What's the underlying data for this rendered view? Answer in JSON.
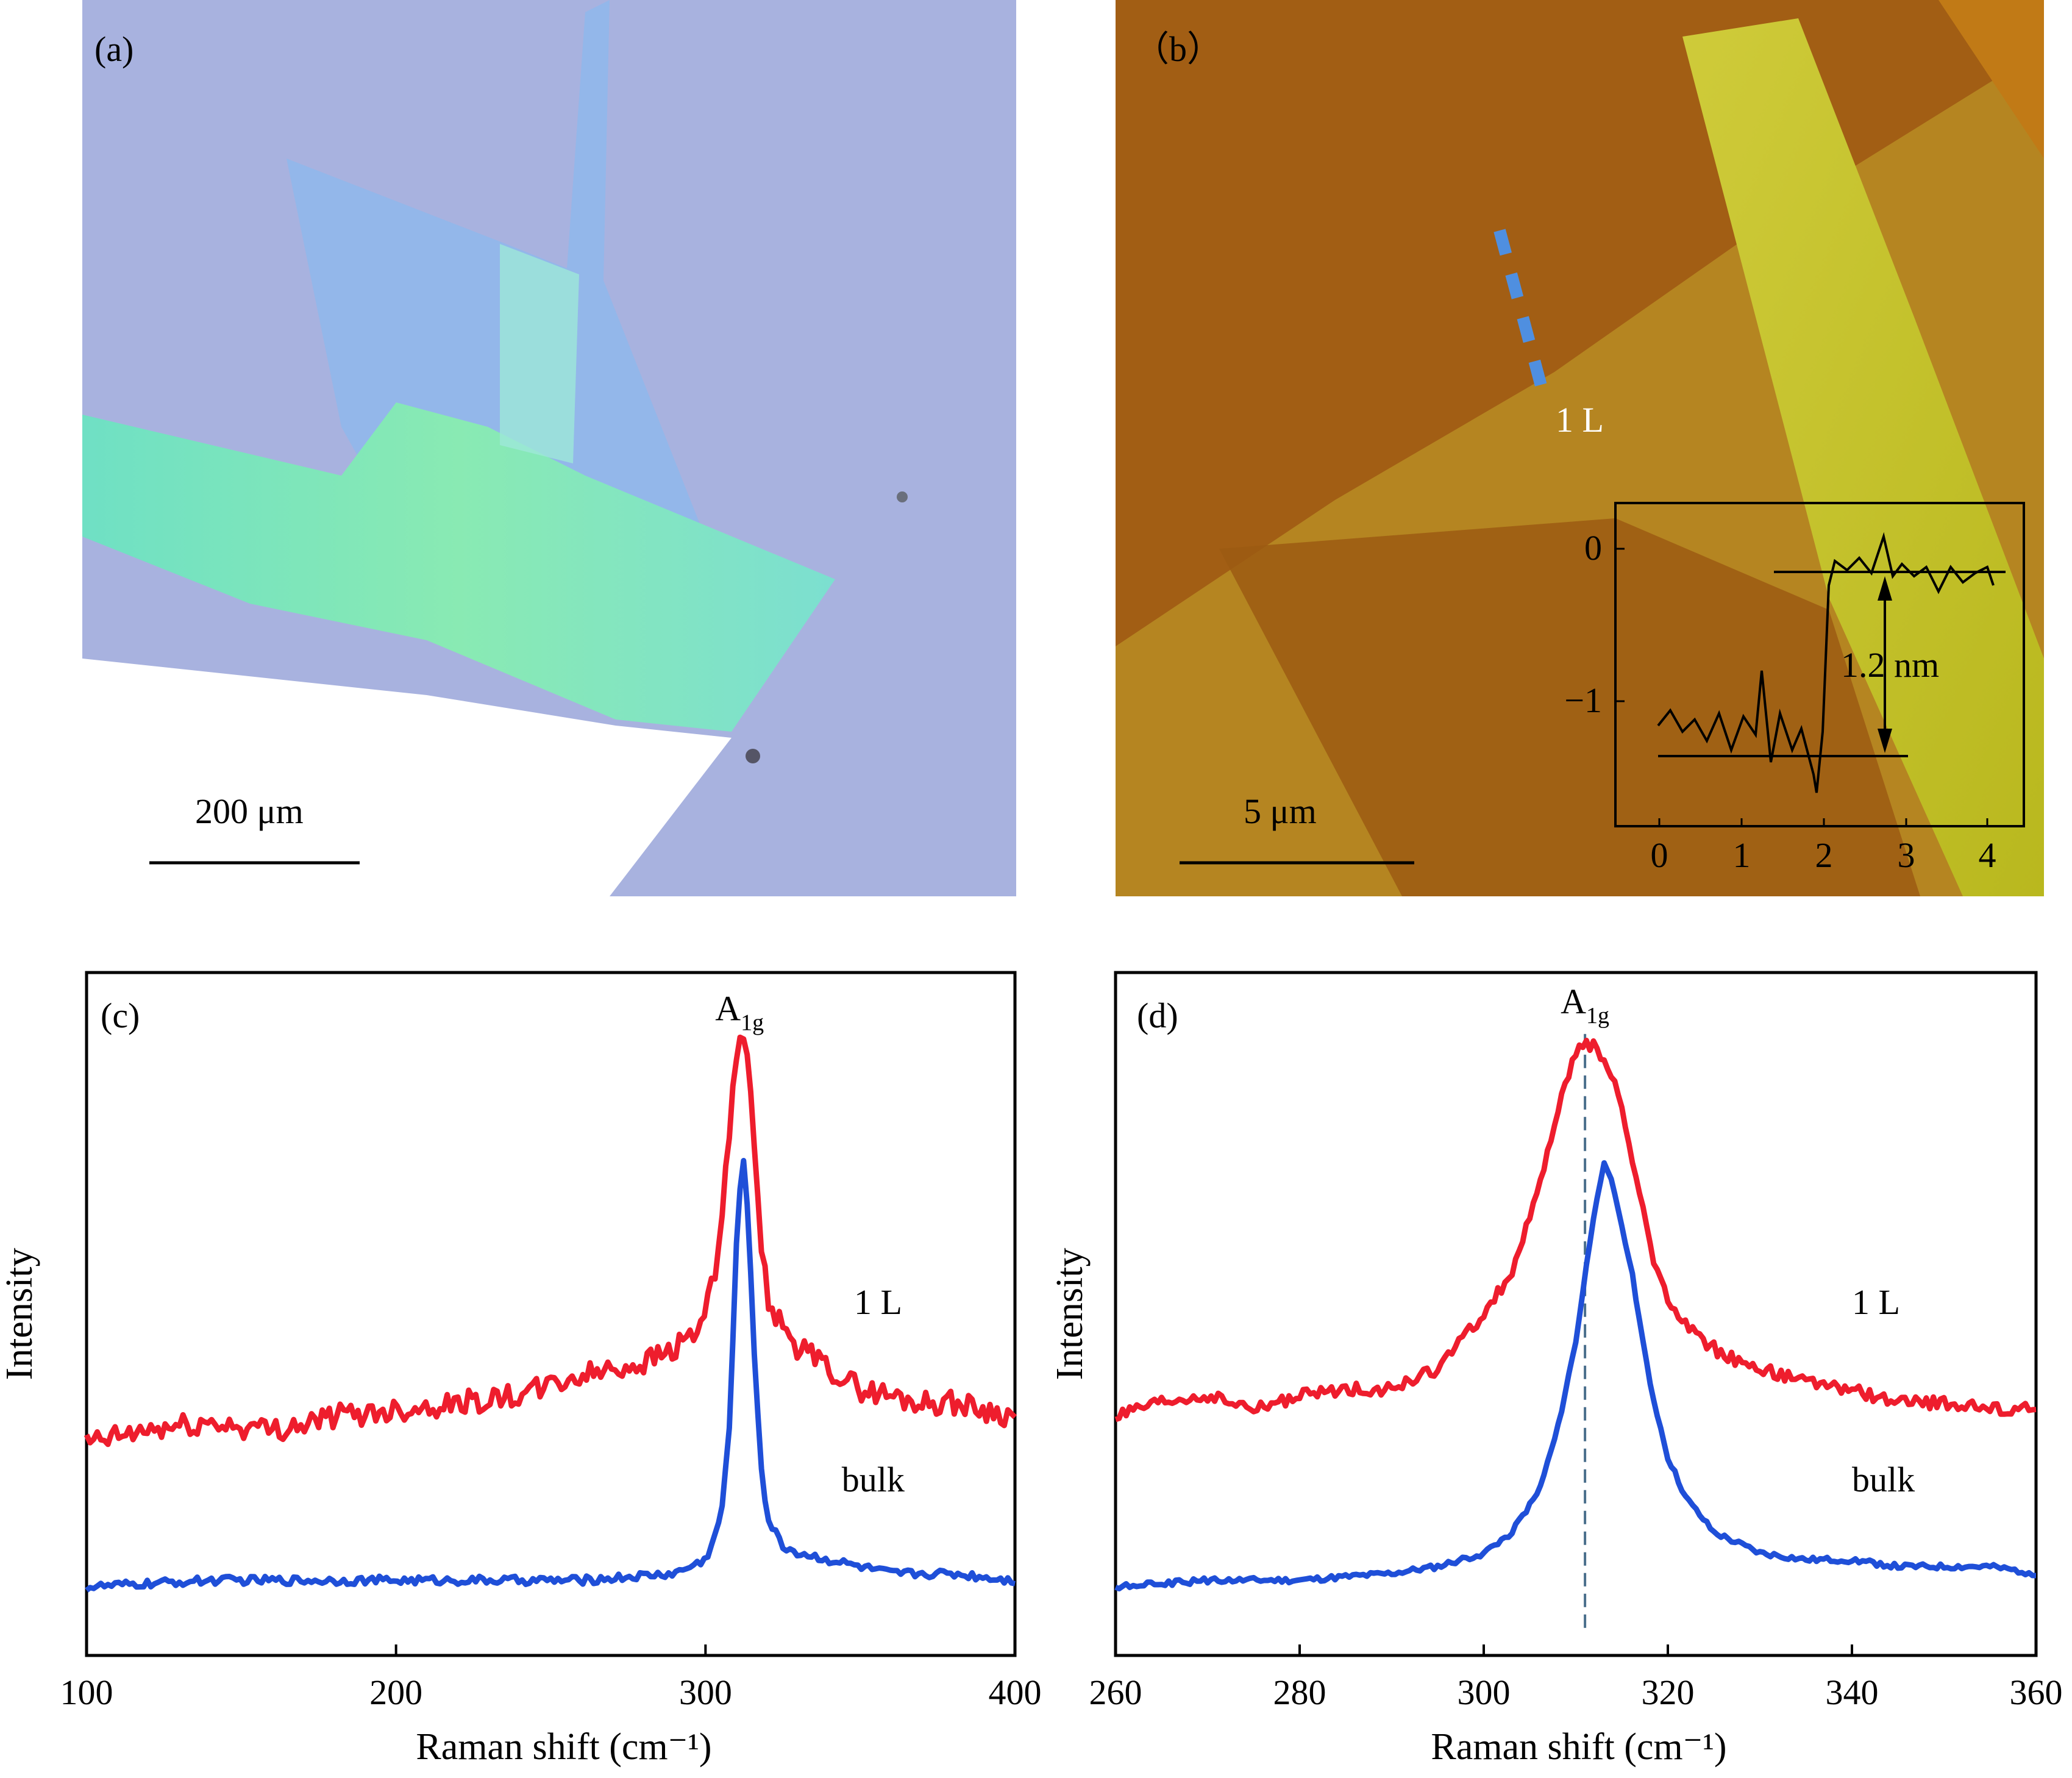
{
  "panels": {
    "a": {
      "label": "(a)",
      "scalebar_label": "200 μm",
      "colors": {
        "substrate": "#a8b2df",
        "flake_green": "#7fe8c2",
        "flake_blue": "#93b7ea"
      }
    },
    "b": {
      "label": "（b）",
      "scalebar_label": "5 μm",
      "layer_label": "1 L",
      "colors": {
        "background": "#a25e14",
        "terrace": "#b98a1e",
        "stripe": "#c8c42a",
        "line_marker": "#4f8fe0"
      },
      "inset": {
        "step_label": "1.2 nm",
        "yticks": [
          "0",
          "−1"
        ],
        "xticks": [
          "0",
          "1",
          "2",
          "3",
          "4"
        ]
      }
    },
    "c": {
      "label": "(c)"
    },
    "d": {
      "label": "(d)"
    }
  },
  "chart_data": [
    {
      "type": "line",
      "title": "",
      "panel": "(c)",
      "xlabel": "Raman shift (cm⁻¹)",
      "ylabel": "Intensity",
      "xlim": [
        100,
        400
      ],
      "ylim": [
        0,
        1
      ],
      "xticks": [
        "100",
        "200",
        "300",
        "400"
      ],
      "peak_label": {
        "main": "A",
        "sub": "1g",
        "x": 311,
        "y": 0.93
      },
      "series": [
        {
          "name": "1 L",
          "color": "#ee1d2d",
          "x": [
            100,
            120,
            140,
            160,
            180,
            200,
            220,
            240,
            260,
            280,
            290,
            298,
            303,
            307,
            310,
            312,
            314,
            317,
            320,
            325,
            330,
            340,
            350,
            360,
            370,
            380,
            390,
            400
          ],
          "y": [
            0.31,
            0.33,
            0.34,
            0.33,
            0.35,
            0.36,
            0.37,
            0.38,
            0.41,
            0.43,
            0.45,
            0.48,
            0.55,
            0.72,
            0.88,
            0.92,
            0.85,
            0.65,
            0.52,
            0.48,
            0.45,
            0.42,
            0.39,
            0.38,
            0.37,
            0.37,
            0.36,
            0.35
          ],
          "label_text": "1 L",
          "label_xy": [
            348,
            0.5
          ]
        },
        {
          "name": "bulk",
          "color": "#1f4fd8",
          "x": [
            100,
            140,
            180,
            220,
            260,
            290,
            300,
            305,
            308,
            310,
            312,
            314,
            316,
            318,
            320,
            325,
            330,
            340,
            360,
            380,
            400
          ],
          "y": [
            0.1,
            0.11,
            0.11,
            0.11,
            0.11,
            0.12,
            0.14,
            0.2,
            0.35,
            0.6,
            0.75,
            0.62,
            0.42,
            0.28,
            0.2,
            0.16,
            0.15,
            0.14,
            0.12,
            0.12,
            0.11
          ],
          "label_text": "bulk",
          "label_xy": [
            344,
            0.24
          ]
        }
      ]
    },
    {
      "type": "line",
      "title": "",
      "panel": "(d)",
      "xlabel": "Raman shift (cm⁻¹)",
      "ylabel": "Intensity",
      "xlim": [
        260,
        360
      ],
      "ylim": [
        0,
        1
      ],
      "xticks": [
        "260",
        "280",
        "300",
        "320",
        "340",
        "360"
      ],
      "peak_label": {
        "main": "A",
        "sub": "1g",
        "x": 311,
        "y": 0.94
      },
      "dashed_line_x": 311,
      "series": [
        {
          "name": "1 L",
          "color": "#ee1d2d",
          "x": [
            260,
            265,
            270,
            275,
            280,
            285,
            290,
            295,
            300,
            303,
            306,
            308,
            310,
            311,
            312,
            314,
            316,
            318,
            320,
            323,
            326,
            330,
            335,
            340,
            345,
            350,
            355,
            360
          ],
          "y": [
            0.35,
            0.37,
            0.38,
            0.36,
            0.38,
            0.39,
            0.39,
            0.42,
            0.5,
            0.56,
            0.68,
            0.8,
            0.88,
            0.9,
            0.89,
            0.85,
            0.74,
            0.6,
            0.52,
            0.47,
            0.44,
            0.42,
            0.4,
            0.39,
            0.37,
            0.37,
            0.36,
            0.36
          ],
          "label_text": "1 L",
          "label_xy": [
            340,
            0.5
          ]
        },
        {
          "name": "bulk",
          "color": "#1f4fd8",
          "x": [
            260,
            270,
            280,
            290,
            295,
            300,
            303,
            306,
            308,
            310,
            312,
            313,
            314,
            316,
            318,
            320,
            322,
            325,
            330,
            335,
            340,
            345,
            350,
            355,
            360
          ],
          "y": [
            0.1,
            0.11,
            0.11,
            0.12,
            0.13,
            0.15,
            0.18,
            0.24,
            0.33,
            0.46,
            0.65,
            0.72,
            0.69,
            0.57,
            0.4,
            0.29,
            0.23,
            0.18,
            0.15,
            0.14,
            0.14,
            0.13,
            0.13,
            0.13,
            0.12
          ],
          "label_text": "bulk",
          "label_xy": [
            340,
            0.24
          ]
        }
      ]
    }
  ]
}
